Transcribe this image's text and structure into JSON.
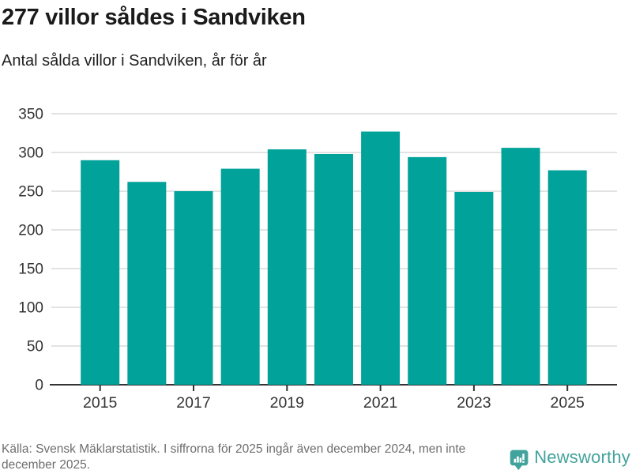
{
  "header": {
    "title": "277 villor såldes i Sandviken",
    "subtitle": "Antal sålda villor i Sandviken, år för år"
  },
  "chart_data": {
    "type": "bar",
    "title": "277 villor såldes i Sandviken",
    "subtitle": "Antal sålda villor i Sandviken, år för år",
    "categories": [
      "2015",
      "2016",
      "2017",
      "2018",
      "2019",
      "2020",
      "2021",
      "2022",
      "2023",
      "2024",
      "2025"
    ],
    "values": [
      290,
      262,
      250,
      279,
      304,
      298,
      327,
      294,
      249,
      306,
      277
    ],
    "xlabel": "",
    "ylabel": "",
    "ylim": [
      0,
      350
    ],
    "ytick_step": 50,
    "ytick_labels": [
      "0",
      "50",
      "100",
      "150",
      "200",
      "250",
      "300",
      "350"
    ],
    "x_ticks_shown": [
      "2015",
      "2017",
      "2019",
      "2021",
      "2023",
      "2025"
    ],
    "grid": true,
    "legend_position": "none",
    "bar_color": "#00a29a",
    "gridline_color": "#e3e3e3",
    "axis_color": "#333333",
    "tick_label_color": "#333333"
  },
  "footer": {
    "source": "Källa: Svensk Mäklarstatistik. I siffrorna för 2025 ingår även december 2024, men inte december 2025."
  },
  "logo": {
    "brand": "Newsworthy",
    "color": "#42a39c",
    "icon": "newsworthy-speech-bubble-bar-chart-icon"
  }
}
